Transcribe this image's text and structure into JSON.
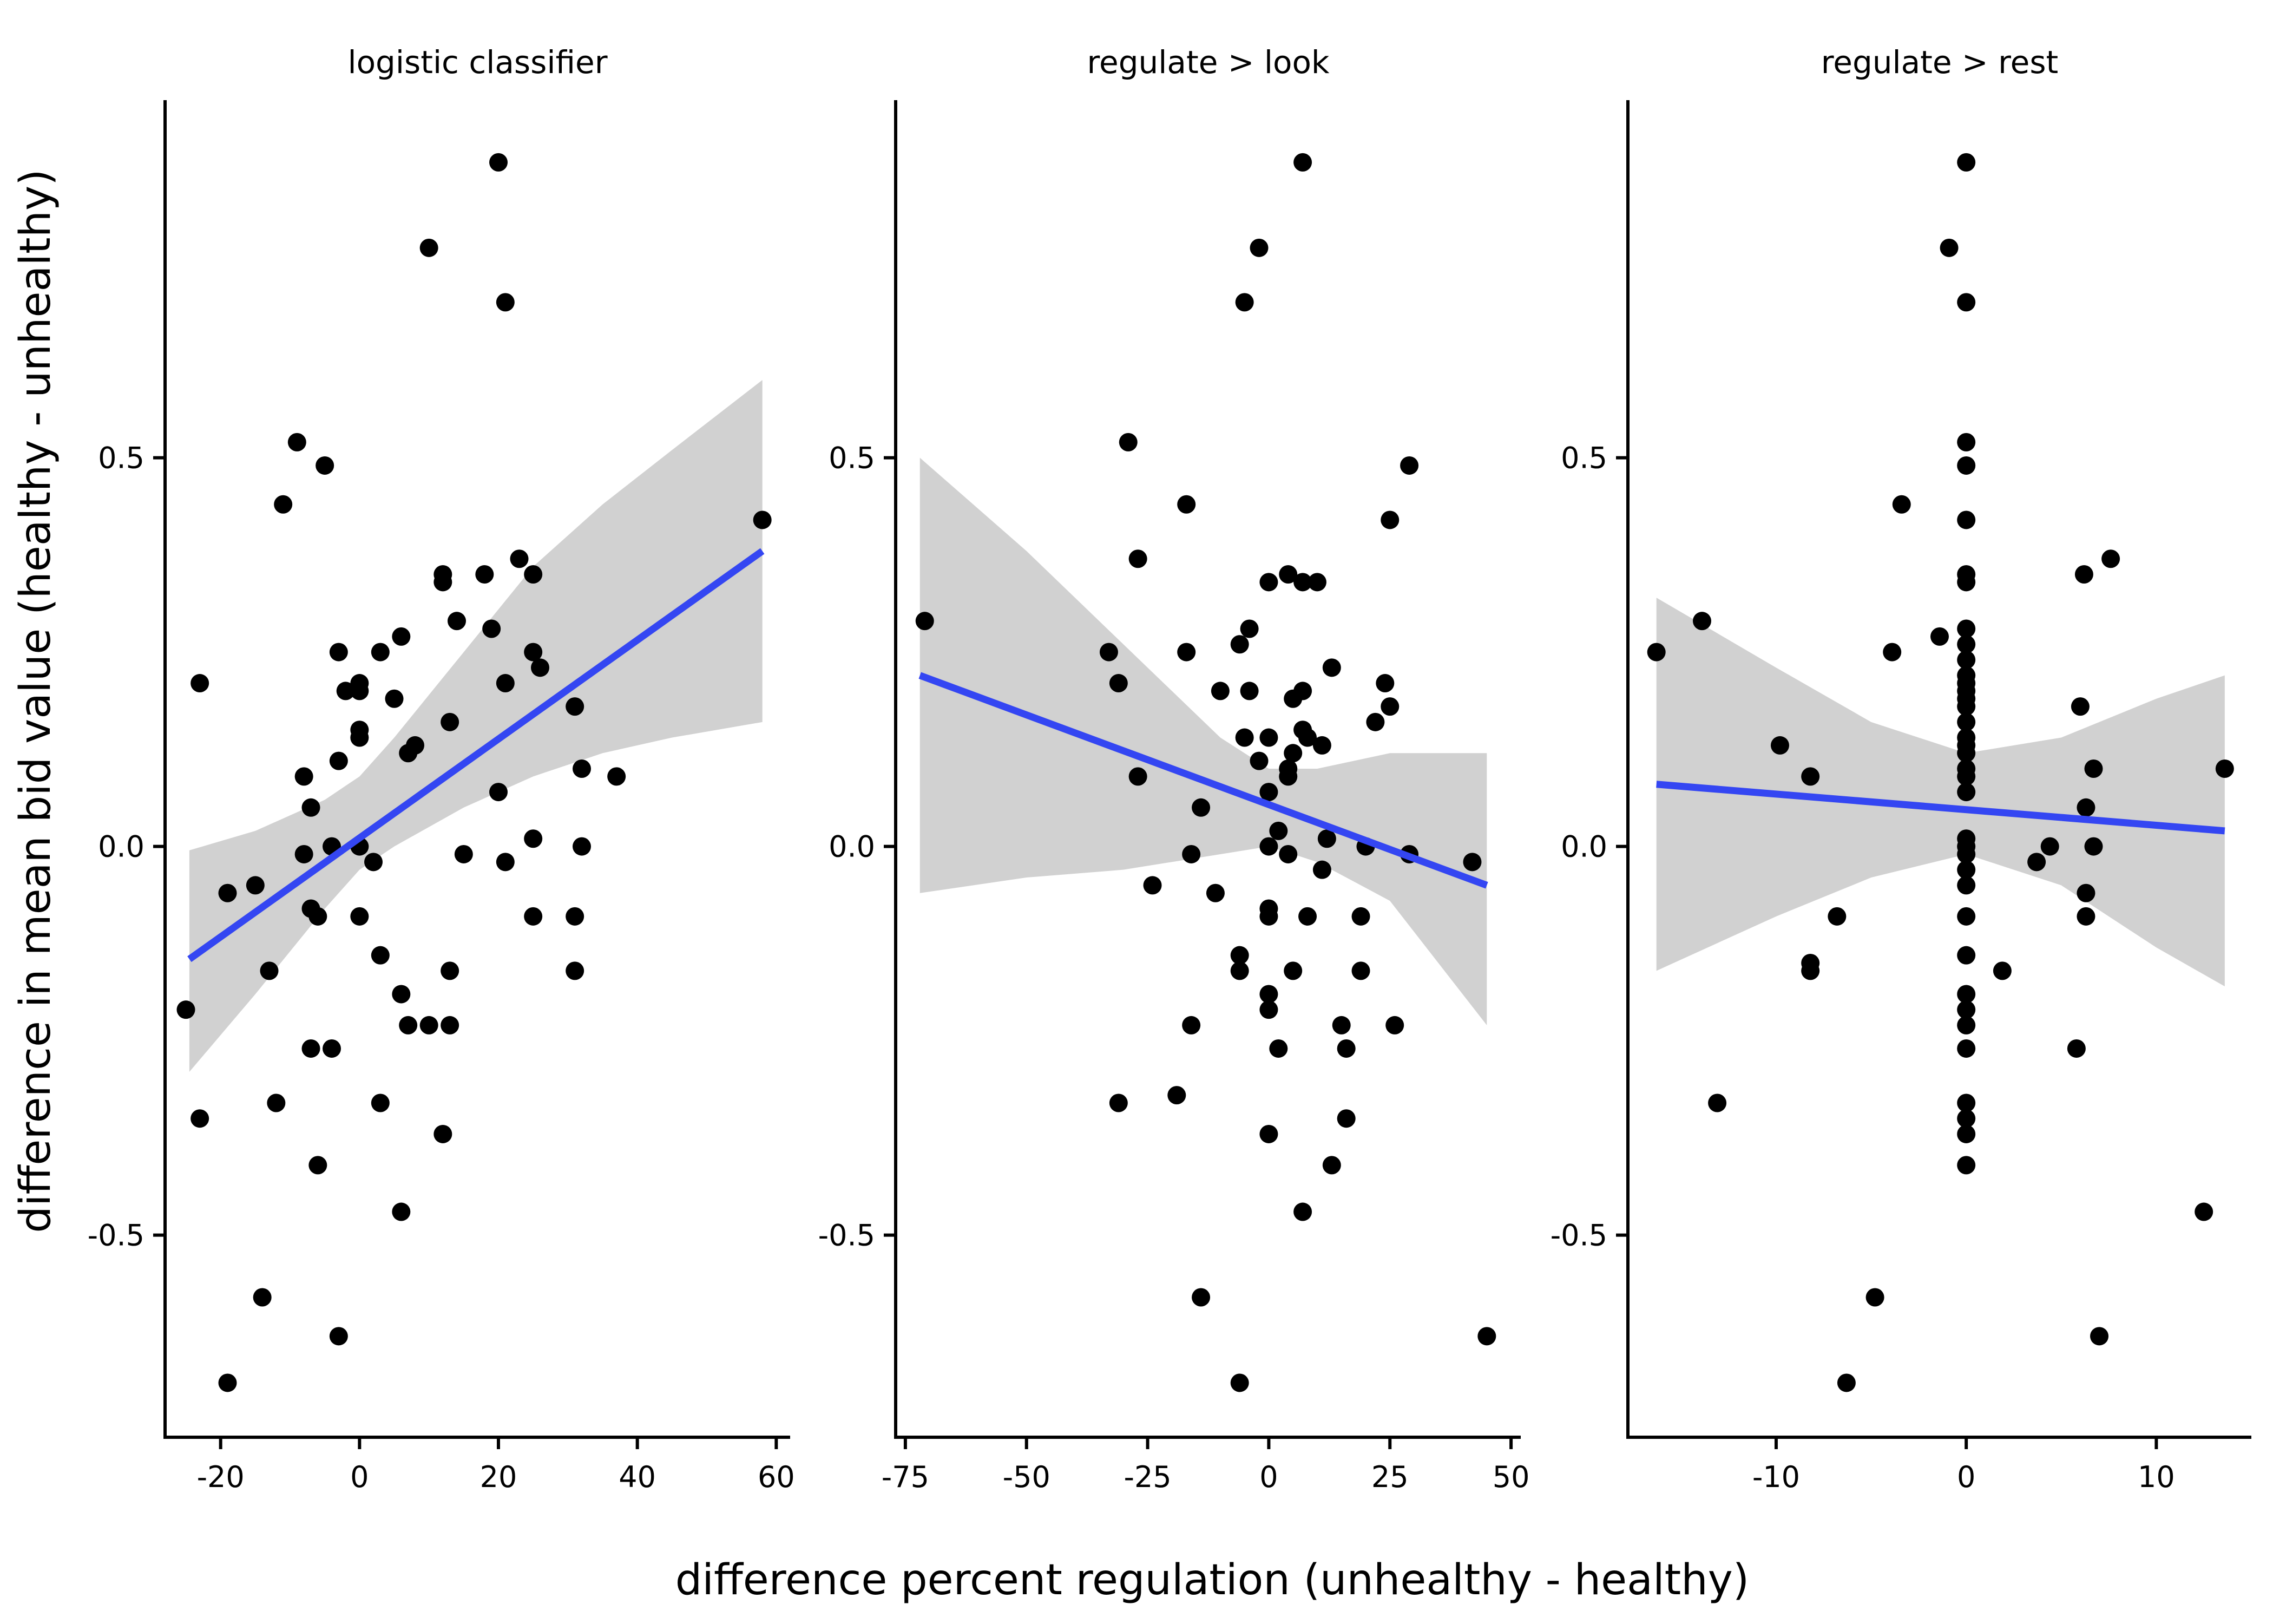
{
  "chart_data": {
    "type": "scatter",
    "ylabel": "difference in mean bid value (healthy - unhealthy)",
    "xlabel": "difference percent regulation (unhealthy - healthy)",
    "ylim": [
      -0.76,
      0.96
    ],
    "yticks": [
      -0.5,
      0.0,
      0.5
    ],
    "ytick_labels": [
      "-0.5",
      "0.0",
      "0.5"
    ],
    "point_color": "#000000",
    "line_color": "#3446f2",
    "band_color": "#bdbdbd",
    "panels": [
      {
        "title": "logistic classifier",
        "xlim": [
          -28,
          62
        ],
        "xticks": [
          -20,
          0,
          20,
          40,
          60
        ],
        "xtick_labels": [
          "-20",
          "0",
          "20",
          "40",
          "60"
        ],
        "fit": {
          "x": [
            -24.5,
            58
          ],
          "y": [
            -0.145,
            0.38
          ]
        },
        "band": {
          "x": [
            -24.5,
            -15,
            -5,
            0,
            5,
            15,
            25,
            35,
            45,
            58
          ],
          "upper": [
            -0.005,
            0.02,
            0.06,
            0.09,
            0.14,
            0.25,
            0.36,
            0.44,
            0.51,
            0.6
          ],
          "lower": [
            -0.29,
            -0.19,
            -0.08,
            -0.03,
            0.0,
            0.05,
            0.09,
            0.12,
            0.14,
            0.16
          ]
        },
        "points": [
          [
            20,
            0.88
          ],
          [
            10,
            0.77
          ],
          [
            21,
            0.7
          ],
          [
            -9,
            0.52
          ],
          [
            -5,
            0.49
          ],
          [
            -11,
            0.44
          ],
          [
            58,
            0.42
          ],
          [
            23,
            0.37
          ],
          [
            18,
            0.35
          ],
          [
            12,
            0.35
          ],
          [
            25,
            0.35
          ],
          [
            12,
            0.34
          ],
          [
            14,
            0.29
          ],
          [
            19,
            0.28
          ],
          [
            6,
            0.27
          ],
          [
            -3,
            0.25
          ],
          [
            3,
            0.25
          ],
          [
            25,
            0.25
          ],
          [
            26,
            0.23
          ],
          [
            -23,
            0.21
          ],
          [
            21,
            0.21
          ],
          [
            0,
            0.21
          ],
          [
            -2,
            0.2
          ],
          [
            0,
            0.2
          ],
          [
            5,
            0.19
          ],
          [
            31,
            0.18
          ],
          [
            13,
            0.16
          ],
          [
            0,
            0.15
          ],
          [
            0,
            0.14
          ],
          [
            8,
            0.13
          ],
          [
            7,
            0.12
          ],
          [
            -3,
            0.11
          ],
          [
            32,
            0.1
          ],
          [
            -8,
            0.09
          ],
          [
            37,
            0.09
          ],
          [
            20,
            0.07
          ],
          [
            -7,
            0.05
          ],
          [
            25,
            0.01
          ],
          [
            -4,
            0.0
          ],
          [
            32,
            0.0
          ],
          [
            0,
            0.0
          ],
          [
            15,
            -0.01
          ],
          [
            -8,
            -0.01
          ],
          [
            2,
            -0.02
          ],
          [
            21,
            -0.02
          ],
          [
            -15,
            -0.05
          ],
          [
            -19,
            -0.06
          ],
          [
            -7,
            -0.08
          ],
          [
            -6,
            -0.09
          ],
          [
            0,
            -0.09
          ],
          [
            25,
            -0.09
          ],
          [
            31,
            -0.09
          ],
          [
            3,
            -0.14
          ],
          [
            -13,
            -0.16
          ],
          [
            13,
            -0.16
          ],
          [
            31,
            -0.16
          ],
          [
            6,
            -0.19
          ],
          [
            -25,
            -0.21
          ],
          [
            7,
            -0.23
          ],
          [
            10,
            -0.23
          ],
          [
            13,
            -0.23
          ],
          [
            -7,
            -0.26
          ],
          [
            -4,
            -0.26
          ],
          [
            -12,
            -0.33
          ],
          [
            3,
            -0.33
          ],
          [
            -23,
            -0.35
          ],
          [
            12,
            -0.37
          ],
          [
            -6,
            -0.41
          ],
          [
            6,
            -0.47
          ],
          [
            -14,
            -0.58
          ],
          [
            -3,
            -0.63
          ],
          [
            -19,
            -0.69
          ]
        ]
      },
      {
        "title": "regulate > look",
        "xlim": [
          -77,
          52
        ],
        "xticks": [
          -75,
          -50,
          -25,
          0,
          25,
          50
        ],
        "xtick_labels": [
          "-75",
          "-50",
          "-25",
          "0",
          "25",
          "50"
        ],
        "fit": {
          "x": [
            -72,
            45
          ],
          "y": [
            0.22,
            -0.05
          ]
        },
        "band": {
          "x": [
            -72,
            -50,
            -30,
            -10,
            0,
            10,
            25,
            45
          ],
          "upper": [
            0.5,
            0.38,
            0.26,
            0.14,
            0.1,
            0.1,
            0.12,
            0.12
          ],
          "lower": [
            -0.06,
            -0.04,
            -0.03,
            -0.01,
            0.0,
            -0.02,
            -0.07,
            -0.23
          ]
        },
        "points": [
          [
            7,
            0.88
          ],
          [
            -2,
            0.77
          ],
          [
            -5,
            0.7
          ],
          [
            -29,
            0.52
          ],
          [
            29,
            0.49
          ],
          [
            -17,
            0.44
          ],
          [
            25,
            0.42
          ],
          [
            -27,
            0.37
          ],
          [
            4,
            0.35
          ],
          [
            0,
            0.34
          ],
          [
            7,
            0.34
          ],
          [
            10,
            0.34
          ],
          [
            -71,
            0.29
          ],
          [
            -4,
            0.28
          ],
          [
            -6,
            0.26
          ],
          [
            -33,
            0.25
          ],
          [
            -17,
            0.25
          ],
          [
            13,
            0.23
          ],
          [
            -31,
            0.21
          ],
          [
            24,
            0.21
          ],
          [
            -4,
            0.2
          ],
          [
            -10,
            0.2
          ],
          [
            7,
            0.2
          ],
          [
            5,
            0.19
          ],
          [
            25,
            0.18
          ],
          [
            22,
            0.16
          ],
          [
            -5,
            0.14
          ],
          [
            0,
            0.14
          ],
          [
            7,
            0.15
          ],
          [
            8,
            0.14
          ],
          [
            11,
            0.13
          ],
          [
            5,
            0.12
          ],
          [
            -2,
            0.11
          ],
          [
            4,
            0.1
          ],
          [
            -27,
            0.09
          ],
          [
            4,
            0.09
          ],
          [
            0,
            0.07
          ],
          [
            -14,
            0.05
          ],
          [
            2,
            0.02
          ],
          [
            0,
            0.0
          ],
          [
            12,
            0.01
          ],
          [
            20,
            0.0
          ],
          [
            29,
            -0.01
          ],
          [
            -16,
            -0.01
          ],
          [
            4,
            -0.01
          ],
          [
            42,
            -0.02
          ],
          [
            11,
            -0.03
          ],
          [
            -24,
            -0.05
          ],
          [
            -11,
            -0.06
          ],
          [
            0,
            -0.09
          ],
          [
            0,
            -0.08
          ],
          [
            8,
            -0.09
          ],
          [
            19,
            -0.09
          ],
          [
            -6,
            -0.14
          ],
          [
            -6,
            -0.16
          ],
          [
            5,
            -0.16
          ],
          [
            19,
            -0.16
          ],
          [
            0,
            -0.19
          ],
          [
            0,
            -0.21
          ],
          [
            15,
            -0.23
          ],
          [
            -16,
            -0.23
          ],
          [
            2,
            -0.26
          ],
          [
            16,
            -0.26
          ],
          [
            26,
            -0.23
          ],
          [
            -31,
            -0.33
          ],
          [
            -19,
            -0.32
          ],
          [
            16,
            -0.35
          ],
          [
            0,
            -0.37
          ],
          [
            13,
            -0.41
          ],
          [
            7,
            -0.47
          ],
          [
            -14,
            -0.58
          ],
          [
            45,
            -0.63
          ],
          [
            -6,
            -0.69
          ]
        ]
      },
      {
        "title": "regulate > rest",
        "xlim": [
          -17.8,
          15
        ],
        "xticks": [
          -10,
          0,
          10
        ],
        "xtick_labels": [
          "-10",
          "0",
          "10"
        ],
        "fit": {
          "x": [
            -16.3,
            13.6
          ],
          "y": [
            0.08,
            0.02
          ]
        },
        "band": {
          "x": [
            -16.3,
            -10,
            -5,
            0,
            5,
            10,
            13.6
          ],
          "upper": [
            0.32,
            0.23,
            0.16,
            0.12,
            0.14,
            0.19,
            0.22
          ],
          "lower": [
            -0.16,
            -0.09,
            -0.04,
            -0.01,
            -0.05,
            -0.13,
            -0.18
          ]
        },
        "points": [
          [
            0,
            0.88
          ],
          [
            -0.9,
            0.77
          ],
          [
            0,
            0.7
          ],
          [
            0,
            0.52
          ],
          [
            0,
            0.49
          ],
          [
            -3.4,
            0.44
          ],
          [
            0,
            0.42
          ],
          [
            7.6,
            0.37
          ],
          [
            0,
            0.35
          ],
          [
            6.2,
            0.35
          ],
          [
            0,
            0.34
          ],
          [
            0,
            0.28
          ],
          [
            -13.9,
            0.29
          ],
          [
            -1.4,
            0.27
          ],
          [
            0,
            0.26
          ],
          [
            0,
            0.24
          ],
          [
            0,
            0.22
          ],
          [
            -16.3,
            0.25
          ],
          [
            -3.9,
            0.25
          ],
          [
            0,
            0.21
          ],
          [
            0,
            0.2
          ],
          [
            0,
            0.19
          ],
          [
            0,
            0.18
          ],
          [
            6,
            0.18
          ],
          [
            0,
            0.16
          ],
          [
            0,
            0.14
          ],
          [
            0,
            0.13
          ],
          [
            -9.8,
            0.13
          ],
          [
            0,
            0.12
          ],
          [
            0,
            0.1
          ],
          [
            6.7,
            0.1
          ],
          [
            13.6,
            0.1
          ],
          [
            0,
            0.09
          ],
          [
            -8.2,
            0.09
          ],
          [
            0,
            0.07
          ],
          [
            6.3,
            0.05
          ],
          [
            0,
            0.01
          ],
          [
            4.4,
            0.0
          ],
          [
            6.7,
            0.0
          ],
          [
            0,
            0.0
          ],
          [
            0,
            -0.01
          ],
          [
            0,
            -0.03
          ],
          [
            3.7,
            -0.02
          ],
          [
            0,
            -0.05
          ],
          [
            6.3,
            -0.06
          ],
          [
            0,
            -0.09
          ],
          [
            6.3,
            -0.09
          ],
          [
            -6.8,
            -0.09
          ],
          [
            0,
            -0.14
          ],
          [
            1.9,
            -0.16
          ],
          [
            -8.2,
            -0.16
          ],
          [
            -8.2,
            -0.15
          ],
          [
            0,
            -0.19
          ],
          [
            0,
            -0.21
          ],
          [
            0,
            -0.23
          ],
          [
            0,
            -0.26
          ],
          [
            5.8,
            -0.26
          ],
          [
            -13.1,
            -0.33
          ],
          [
            0,
            -0.33
          ],
          [
            0,
            -0.35
          ],
          [
            0,
            -0.37
          ],
          [
            0,
            -0.41
          ],
          [
            12.5,
            -0.47
          ],
          [
            -4.8,
            -0.58
          ],
          [
            7,
            -0.63
          ],
          [
            -6.3,
            -0.69
          ]
        ]
      }
    ]
  }
}
